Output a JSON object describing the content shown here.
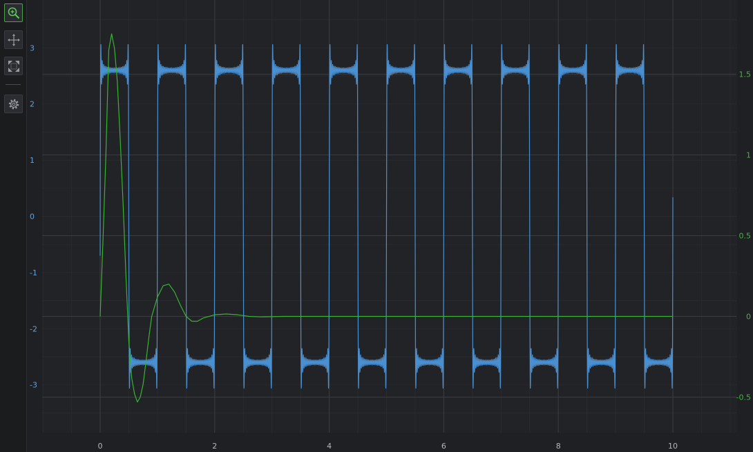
{
  "toolbar": {
    "tools": [
      {
        "name": "zoom-tool-button",
        "icon": "zoom-icon",
        "active": true
      },
      {
        "name": "pan-tool-button",
        "icon": "pan-icon",
        "active": false
      },
      {
        "name": "fit-view-button",
        "icon": "fit-view-icon",
        "active": false
      },
      {
        "name": "settings-button",
        "icon": "gear-icon",
        "active": false
      }
    ]
  },
  "colors": {
    "background": "#1f2023",
    "plot_band": "#222327",
    "grid_major": "#3b3c41",
    "grid_minor": "#2a2b2f",
    "series_blue": "#4a8fd0",
    "series_green": "#36b52f",
    "tick_left": "#6a9fd4",
    "tick_right": "#4cae47",
    "tick_bottom": "#b8b8bc",
    "toolbar_active": "#4aa34a"
  },
  "chart_data": {
    "type": "line",
    "title": "",
    "xlabel": "",
    "xlim": [
      -1,
      11.2
    ],
    "x_ticks": [
      "0",
      "2",
      "4",
      "6",
      "8",
      "10"
    ],
    "y_left": {
      "ylim": [
        -3.5,
        3.85
      ],
      "ticks": [
        "3",
        "2",
        "1",
        "0",
        "-1",
        "-2",
        "-3"
      ]
    },
    "y_right": {
      "ylim": [
        -0.6,
        1.85
      ],
      "ticks": [
        "1.5",
        "1",
        "0.5",
        "0",
        "-0.5"
      ]
    },
    "grid": true,
    "series": [
      {
        "axis": "left",
        "color": "#4a8fd0",
        "description_of_shape": "square wave, period 1.0, amplitude approx. ±3.2 with Gibbs ringing near edges",
        "x_range": [
          0,
          10
        ],
        "fundamental_period": 1.0,
        "harmonics": [
          1,
          3,
          5,
          7,
          9,
          11,
          13,
          15,
          17,
          19,
          21,
          23,
          25,
          27,
          29,
          31,
          33,
          35,
          37,
          39,
          41
        ],
        "amplitude": 2.6,
        "start_value": -0.7,
        "end_value": 0.34
      },
      {
        "axis": "right",
        "color": "#36b52f",
        "description_of_shape": "damped oscillation settling to 0",
        "x_range": [
          0,
          10
        ],
        "points": [
          [
            0,
            0
          ],
          [
            0.05,
            0.48
          ],
          [
            0.1,
            1.0
          ],
          [
            0.15,
            1.65
          ],
          [
            0.2,
            1.75
          ],
          [
            0.25,
            1.66
          ],
          [
            0.3,
            1.45
          ],
          [
            0.35,
            1.1
          ],
          [
            0.4,
            0.7
          ],
          [
            0.45,
            0.25
          ],
          [
            0.5,
            -0.15
          ],
          [
            0.55,
            -0.38
          ],
          [
            0.6,
            -0.48
          ],
          [
            0.65,
            -0.53
          ],
          [
            0.7,
            -0.5
          ],
          [
            0.75,
            -0.42
          ],
          [
            0.8,
            -0.28
          ],
          [
            0.85,
            -0.13
          ],
          [
            0.9,
            0.0
          ],
          [
            1.0,
            0.12
          ],
          [
            1.1,
            0.19
          ],
          [
            1.2,
            0.2
          ],
          [
            1.3,
            0.15
          ],
          [
            1.4,
            0.07
          ],
          [
            1.5,
            0.0
          ],
          [
            1.6,
            -0.03
          ],
          [
            1.7,
            -0.03
          ],
          [
            1.8,
            -0.01
          ],
          [
            2.0,
            0.01
          ],
          [
            2.2,
            0.015
          ],
          [
            2.4,
            0.01
          ],
          [
            2.6,
            0.0
          ],
          [
            2.8,
            -0.003
          ],
          [
            3.2,
            0.0
          ],
          [
            10,
            0.0
          ]
        ]
      }
    ]
  }
}
